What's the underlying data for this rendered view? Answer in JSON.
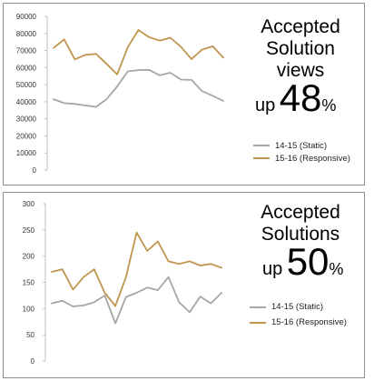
{
  "colors": {
    "static": "#a6a6a6",
    "responsive": "#c0954f"
  },
  "panels": [
    {
      "heading_lines": [
        "Accepted",
        "Solution",
        "views"
      ],
      "up_word": "up",
      "big_number": "48",
      "percent_sign": "%",
      "legend": [
        "14-15 (Static)",
        "15-16 (Responsive)"
      ]
    },
    {
      "heading_lines": [
        "Accepted",
        "Solutions"
      ],
      "up_word": "up",
      "big_number": "50",
      "percent_sign": "%",
      "legend": [
        "14-15 (Static)",
        "15-16 (Responsive)"
      ]
    }
  ],
  "chart_data": [
    {
      "type": "line",
      "title": "",
      "xlabel": "",
      "ylabel": "",
      "ylim": [
        0,
        90000
      ],
      "yticks": [
        "0",
        "10000",
        "20000",
        "30000",
        "40000",
        "50000",
        "60000",
        "70000",
        "80000",
        "90000"
      ],
      "grid": false,
      "legend_position": "right",
      "series": [
        {
          "name": "14-15 (Static)",
          "color": "#a6a6a6",
          "values": [
            41500,
            39200,
            38700,
            37800,
            37000,
            41500,
            49000,
            57800,
            58500,
            58700,
            55500,
            57000,
            53000,
            52800,
            46200,
            43500,
            40500
          ]
        },
        {
          "name": "15-16 (Responsive)",
          "color": "#c0954f",
          "values": [
            71500,
            76500,
            64800,
            67500,
            68000,
            62200,
            56000,
            72000,
            82000,
            77800,
            75800,
            77500,
            72200,
            65000,
            70500,
            72500,
            65800
          ]
        }
      ]
    },
    {
      "type": "line",
      "title": "",
      "xlabel": "",
      "ylabel": "",
      "ylim": [
        0,
        300
      ],
      "yticks": [
        "0",
        "50",
        "100",
        "150",
        "200",
        "250",
        "300"
      ],
      "grid": false,
      "legend_position": "right",
      "series": [
        {
          "name": "14-15 (Static)",
          "color": "#a6a6a6",
          "values": [
            110,
            115,
            104,
            106,
            112,
            125,
            72,
            122,
            130,
            140,
            135,
            160,
            112,
            93,
            123,
            110,
            130
          ]
        },
        {
          "name": "15-16 (Responsive)",
          "color": "#c0954f",
          "values": [
            170,
            175,
            136,
            160,
            175,
            130,
            105,
            160,
            245,
            210,
            228,
            190,
            185,
            190,
            182,
            185,
            178
          ]
        }
      ]
    }
  ]
}
